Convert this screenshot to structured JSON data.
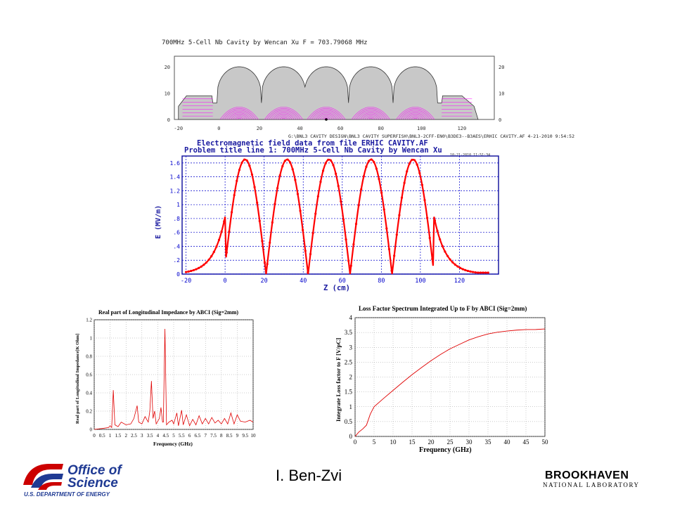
{
  "author": "I. Ben-Zvi",
  "logos": {
    "doe_line1": "Office of",
    "doe_line2": "Science",
    "doe_line3": "U.S. DEPARTMENT OF ENERGY",
    "bnl_line1": "BROOKHAVEN",
    "bnl_line2": "NATIONAL LABORATORY"
  },
  "colors": {
    "cavity_field_lines": "#ff00ff",
    "field_curve": "#ff0000",
    "grid_blue": "#0000cc",
    "doe_red": "#cc0000",
    "doe_blue": "#1f3a93"
  },
  "chart_data": [
    {
      "id": "cavity",
      "type": "diagram-plot",
      "title": "700MHz 5-Cell Nb Cavity by Wencan Xu  F = 703.79068 MHz",
      "footer": "G:\\BNL3 CAVITY DESIGN\\BNL3 CAVITY SUPERFISH\\BNL3-2CFF-EN0\\B3DE3--B3AES\\ERHIC CAVITY.AF  4-21-2010  9:54:52",
      "xticks": [
        "-20",
        "0",
        "20",
        "40",
        "60",
        "80",
        "100",
        "120"
      ],
      "yticks": [
        "0",
        "10",
        "20"
      ],
      "xlim": [
        -22,
        136
      ],
      "ylim": [
        0,
        24
      ],
      "cells": [
        10,
        32,
        53,
        75,
        97
      ]
    },
    {
      "id": "field",
      "type": "line",
      "title": "Electromagnetic field data from file ERHIC CAVITY.AF",
      "subtitle": "Problem title line 1: 700MHz 5-Cell Nb Cavity by Wencan Xu",
      "header_right": "10-21-2010  11:51:34",
      "xlabel": "Z (cm)",
      "ylabel": "E (MV/m)",
      "xticks": [
        "-20",
        "0",
        "20",
        "40",
        "60",
        "80",
        "100",
        "120"
      ],
      "yticks": [
        "0",
        ".2",
        ".4",
        ".6",
        ".8",
        "1",
        "1.2",
        "1.4",
        "1.6"
      ],
      "yticks_values": [
        0,
        0.2,
        0.4,
        0.6,
        0.8,
        1.0,
        1.2,
        1.4,
        1.6
      ],
      "xlim": [
        -22,
        140
      ],
      "ylim": [
        0,
        1.7
      ],
      "peaks_x": [
        10,
        32,
        53,
        75,
        97
      ],
      "nodes_x": [
        21,
        42,
        64,
        86
      ],
      "peak_value": 1.65
    },
    {
      "id": "impedance",
      "type": "line",
      "title": "Real part of Longitudinal Impedance by ABCI (Sig=2mm)",
      "xlabel": "Frequency (GHz)",
      "ylabel": "Real part of Longitudinal Impedance[K Ohm]",
      "xticks": [
        "0",
        "0.5",
        "1",
        "1.5",
        "2",
        "2.5",
        "3",
        "3.5",
        "4",
        "4.5",
        "5",
        "5.5",
        "6",
        "6.5",
        "7",
        "7.5",
        "8",
        "8.5",
        "9",
        "9.5",
        "10"
      ],
      "yticks": [
        "0",
        "0.2",
        "0.4",
        "0.6",
        "0.8",
        "1",
        "1.2"
      ],
      "xlim": [
        0,
        10
      ],
      "ylim": [
        0,
        1.2
      ],
      "x": [
        0,
        0.5,
        0.9,
        1.0,
        1.1,
        1.2,
        1.3,
        1.5,
        1.7,
        2.0,
        2.3,
        2.5,
        2.7,
        2.8,
        3.0,
        3.2,
        3.4,
        3.5,
        3.6,
        3.7,
        3.8,
        3.9,
        4.1,
        4.2,
        4.3,
        4.35,
        4.45,
        4.55,
        4.7,
        4.9,
        5.0,
        5.2,
        5.3,
        5.5,
        5.6,
        5.8,
        6.0,
        6.2,
        6.4,
        6.6,
        6.8,
        7.0,
        7.2,
        7.4,
        7.6,
        7.8,
        8.0,
        8.2,
        8.4,
        8.6,
        8.8,
        9.0,
        9.2,
        9.5,
        9.8,
        10.0
      ],
      "y": [
        0.0,
        0.01,
        0.02,
        0.04,
        0.02,
        0.43,
        0.05,
        0.03,
        0.08,
        0.05,
        0.06,
        0.12,
        0.26,
        0.08,
        0.06,
        0.14,
        0.08,
        0.2,
        0.53,
        0.12,
        0.2,
        0.06,
        0.12,
        0.24,
        0.08,
        0.08,
        1.1,
        0.05,
        0.08,
        0.1,
        0.06,
        0.18,
        0.04,
        0.21,
        0.05,
        0.16,
        0.04,
        0.11,
        0.05,
        0.15,
        0.06,
        0.12,
        0.06,
        0.13,
        0.07,
        0.1,
        0.06,
        0.12,
        0.06,
        0.18,
        0.06,
        0.16,
        0.09,
        0.08,
        0.1,
        0.08
      ]
    },
    {
      "id": "lossfactor",
      "type": "line",
      "title": "Loss Factor Spectrum Integrated Up to F by ABCI (Sig=2mm)",
      "xlabel": "Frequency (GHz)",
      "ylabel": "Integrate Loss factor to F [V/pC]",
      "xticks": [
        "0",
        "5",
        "10",
        "15",
        "20",
        "25",
        "30",
        "35",
        "40",
        "45",
        "50"
      ],
      "yticks": [
        "0",
        "0.5",
        "1",
        "1.5",
        "2",
        "2.5",
        "3",
        "3.5",
        "4"
      ],
      "xlim": [
        0,
        50
      ],
      "ylim": [
        0,
        4
      ],
      "x": [
        0,
        1,
        2,
        3,
        4,
        5,
        7.5,
        10,
        12.5,
        15,
        17.5,
        20,
        22.5,
        25,
        27.5,
        30,
        32.5,
        35,
        37.5,
        40,
        42.5,
        45,
        47.5,
        50
      ],
      "y": [
        0,
        0.15,
        0.25,
        0.38,
        0.75,
        1.0,
        1.28,
        1.55,
        1.82,
        2.08,
        2.32,
        2.55,
        2.76,
        2.95,
        3.1,
        3.25,
        3.36,
        3.45,
        3.51,
        3.55,
        3.58,
        3.6,
        3.6,
        3.62
      ]
    }
  ]
}
